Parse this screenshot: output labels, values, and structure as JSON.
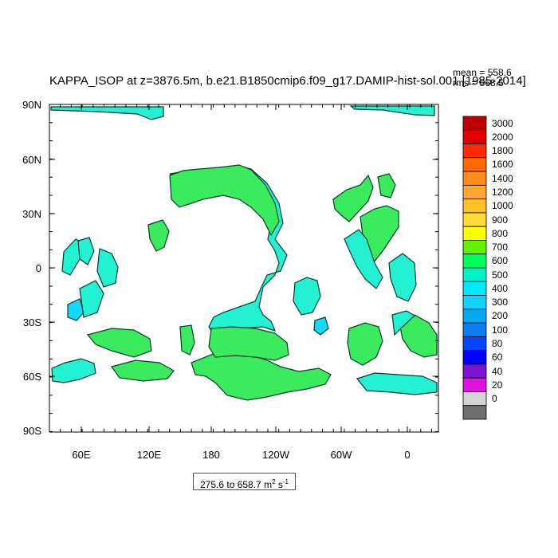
{
  "title": "KAPPA_ISOP at z=3876.5m, b.e21.B1850cmip6.f09_g17.DAMIP-hist-sol.001 [1985-2014]",
  "stats": {
    "mean": "mean = 558.6",
    "rms": "rms = 568.5"
  },
  "range_label": {
    "text": "275.6 to 658.7 m",
    "unit_sup": "2",
    "unit_tail": " s",
    "unit_sup2": "-1"
  },
  "lat_labels": [
    "90N",
    "60N",
    "30N",
    "0",
    "30S",
    "60S",
    "90S"
  ],
  "lon_labels": [
    "60E",
    "120E",
    "180",
    "120W",
    "60W",
    "0"
  ],
  "colorbar": {
    "labels": [
      "3000",
      "2000",
      "1800",
      "1600",
      "1400",
      "1200",
      "1000",
      "900",
      "800",
      "700",
      "600",
      "500",
      "400",
      "300",
      "200",
      "100",
      "80",
      "60",
      "40",
      "20",
      "0"
    ],
    "colors": [
      "#c00000",
      "#e30000",
      "#ff2a00",
      "#ff6a00",
      "#ff8c1a",
      "#ffa733",
      "#ffc226",
      "#ffdb33",
      "#ffff00",
      "#62f000",
      "#00ff58",
      "#00f0c8",
      "#00e8ff",
      "#10d2ff",
      "#00aaf4",
      "#0a7ef0",
      "#0046ff",
      "#0000ff",
      "#7a14d2",
      "#dc14dc",
      "#d3d3d3",
      "#6e6e6e"
    ]
  },
  "map": {
    "land_color": "#ffffff",
    "colors_shown": [
      "#3aeb5e",
      "#22f2d2",
      "#15d8ff"
    ]
  }
}
